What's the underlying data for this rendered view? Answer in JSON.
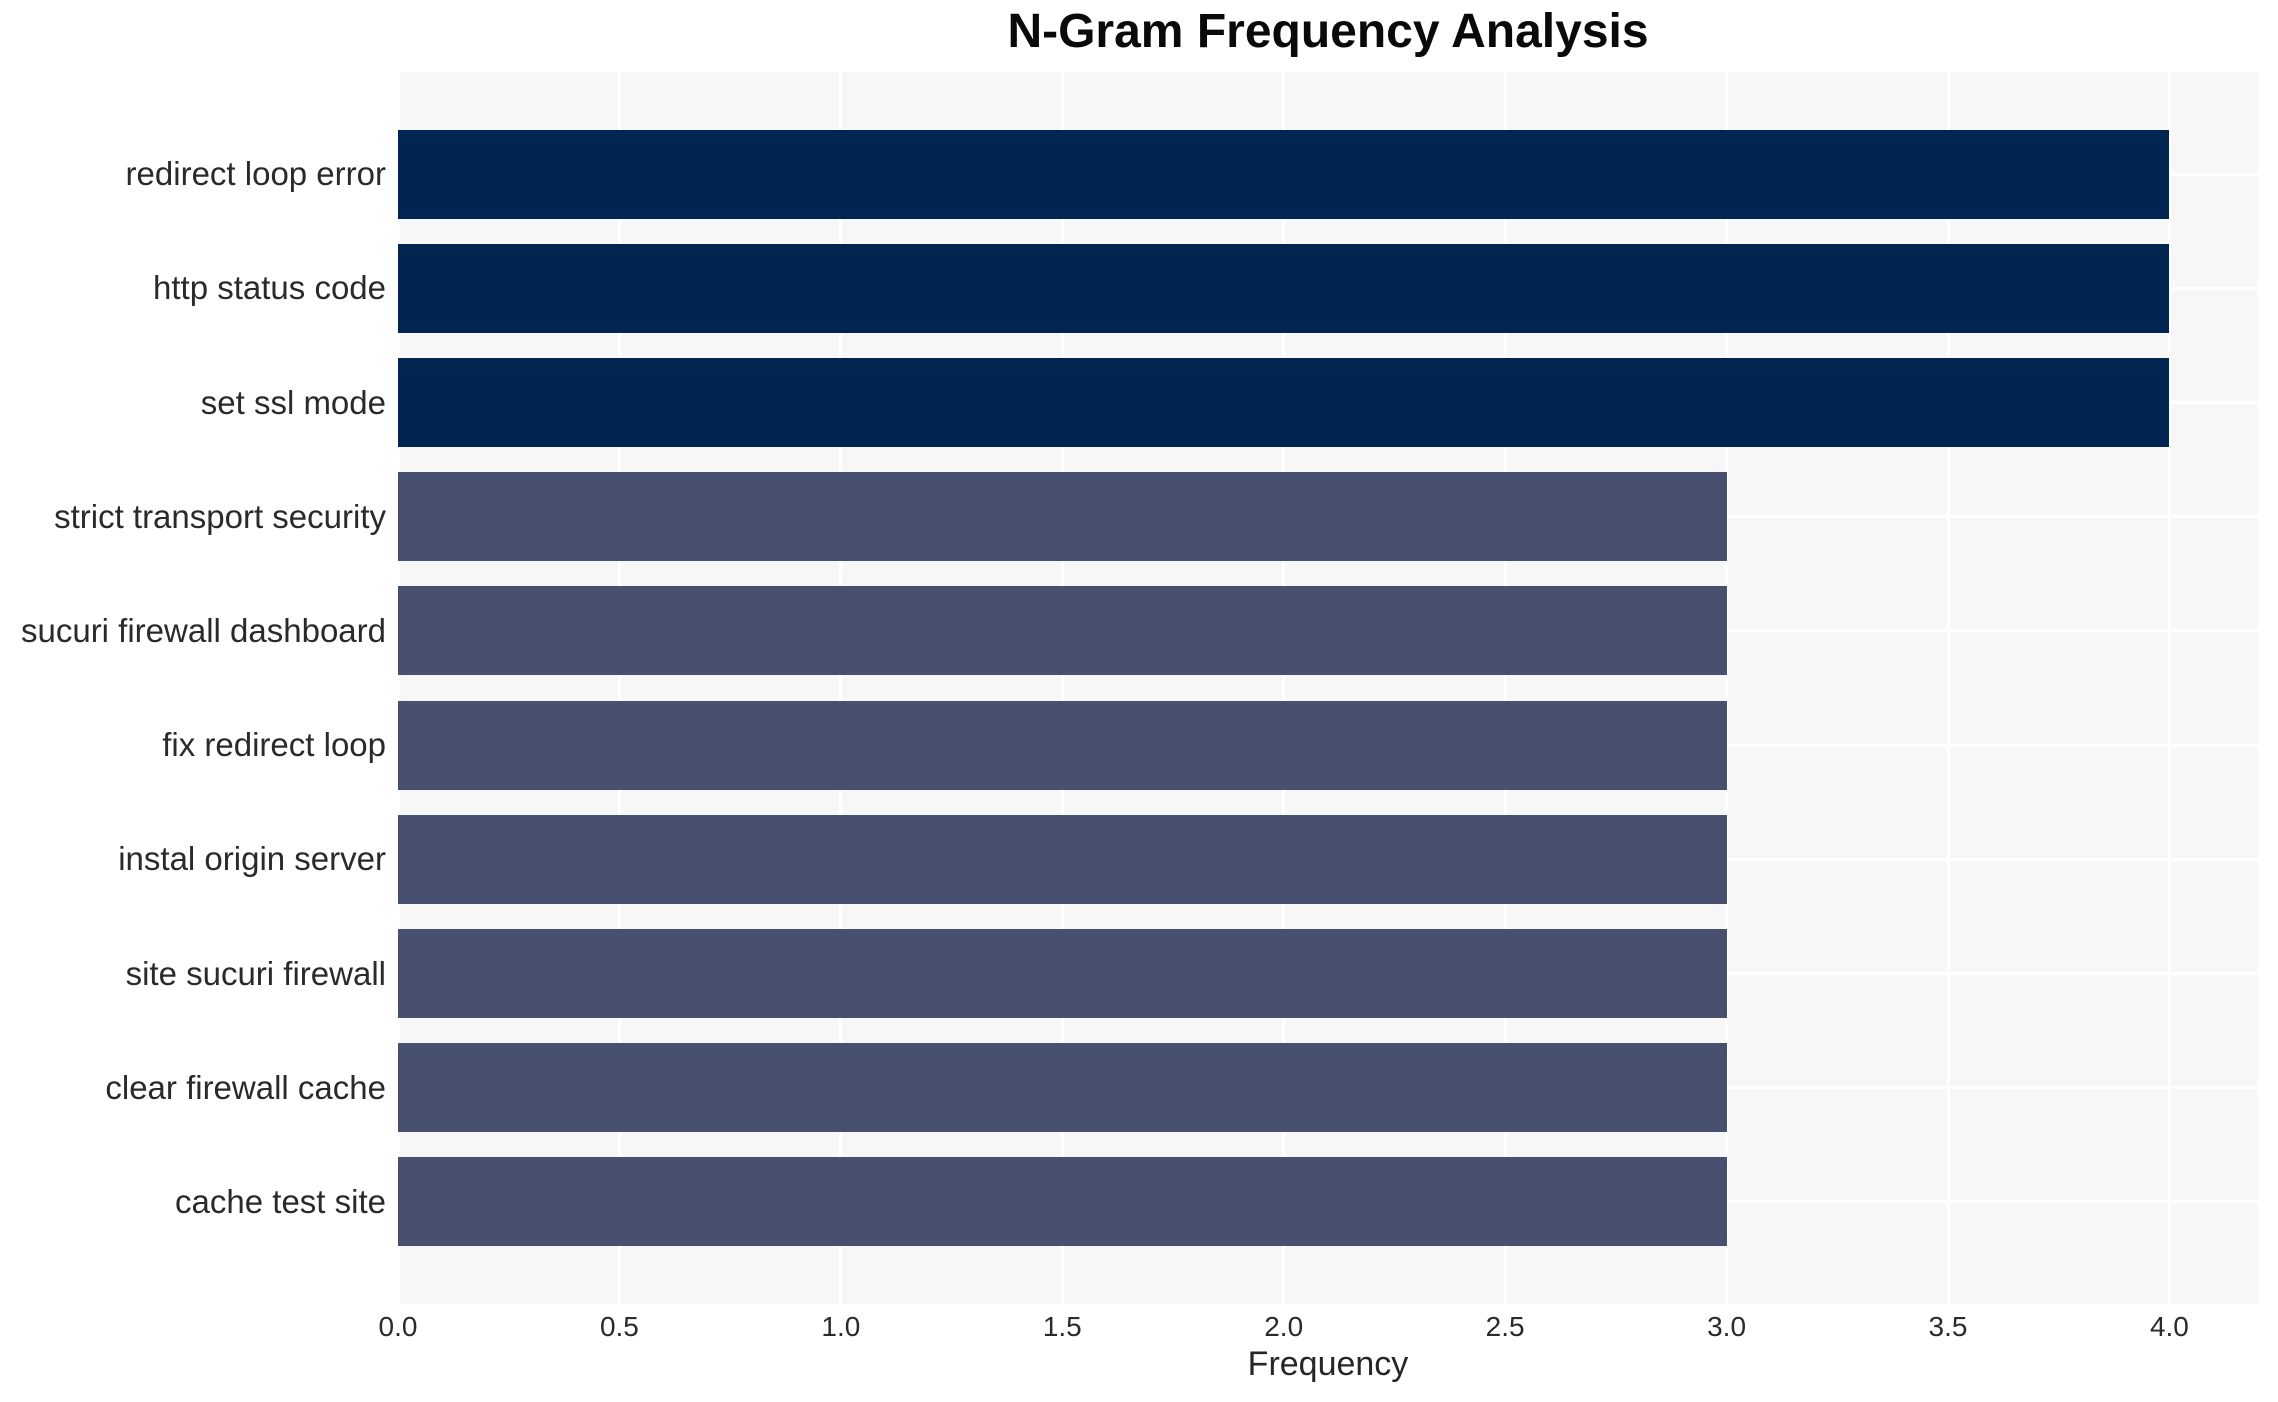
{
  "chart_data": {
    "type": "bar",
    "orientation": "horizontal",
    "title": "N-Gram Frequency Analysis",
    "xlabel": "Frequency",
    "ylabel": "",
    "categories": [
      "redirect loop error",
      "http status code",
      "set ssl mode",
      "strict transport security",
      "sucuri firewall dashboard",
      "fix redirect loop",
      "instal origin server",
      "site sucuri firewall",
      "clear firewall cache",
      "cache test site"
    ],
    "values": [
      4,
      4,
      4,
      3,
      3,
      3,
      3,
      3,
      3,
      3
    ],
    "xlim": [
      0,
      4.2
    ],
    "xticks": [
      0.0,
      0.5,
      1.0,
      1.5,
      2.0,
      2.5,
      3.0,
      3.5,
      4.0
    ],
    "xtick_labels": [
      "0.0",
      "0.5",
      "1.0",
      "1.5",
      "2.0",
      "2.5",
      "3.0",
      "3.5",
      "4.0"
    ],
    "grid": true,
    "legend": false,
    "colors": {
      "bar_value_4": "#002551",
      "bar_value_3": "#47506F",
      "plot_background": "#F7F7F8",
      "gridline": "#FFFFFF",
      "title_text": "#0A0A0A",
      "tick_text": "#2A2A2A"
    }
  }
}
